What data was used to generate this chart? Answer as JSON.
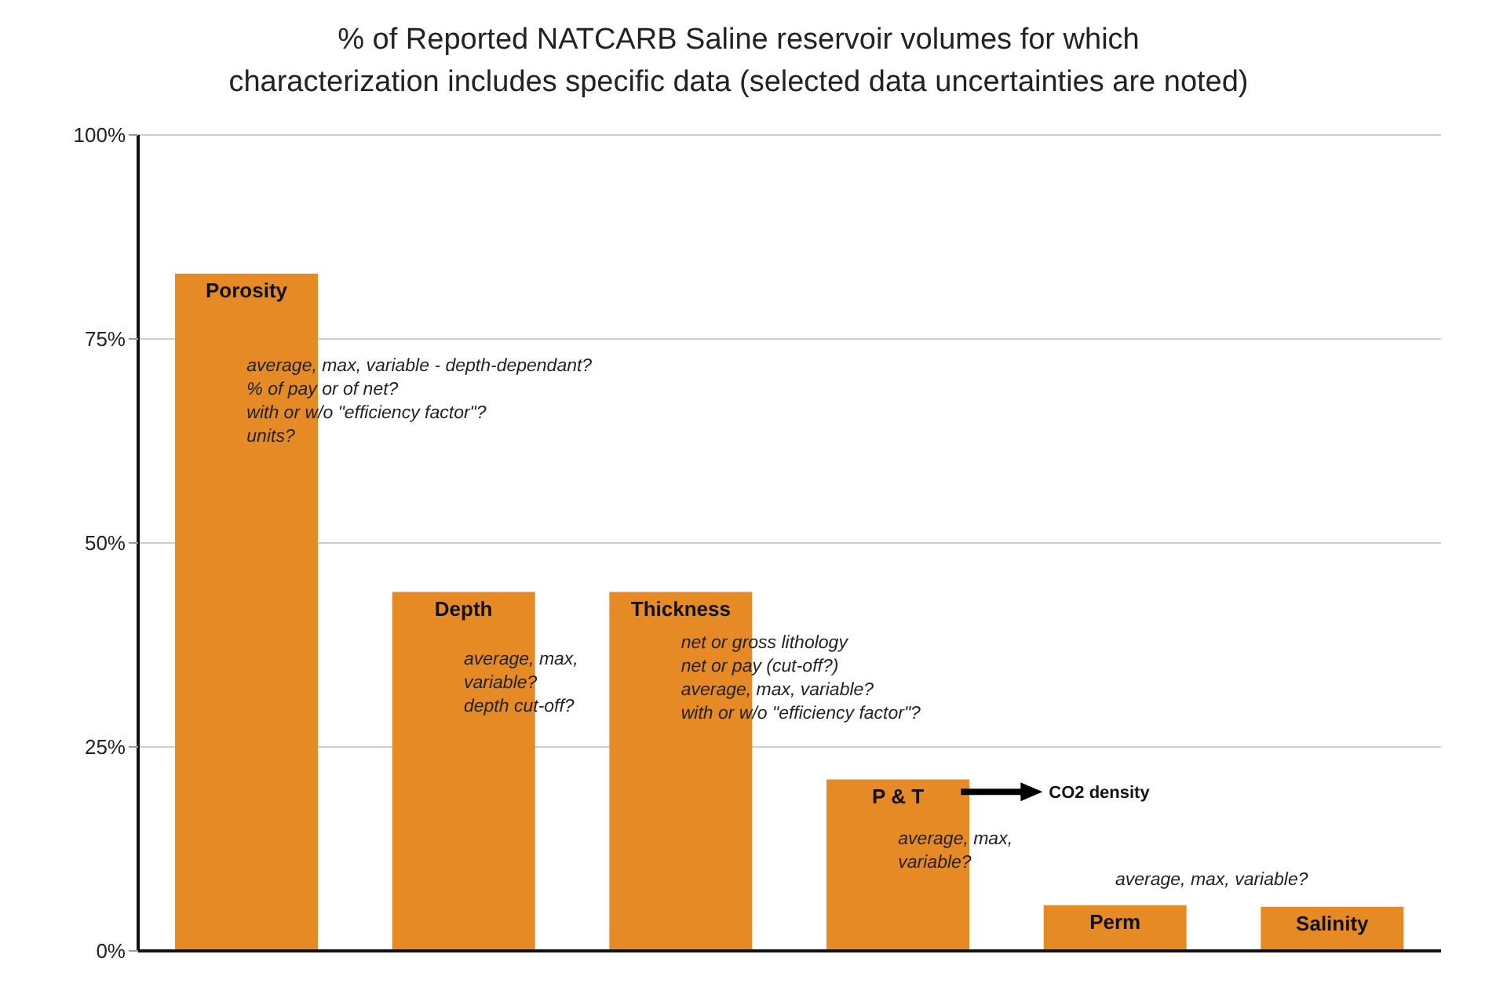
{
  "chart_data": {
    "type": "bar",
    "title": "% of Reported NATCARB Saline reservoir volumes for which\ncharacterization includes specific data (selected data uncertainties are noted)",
    "categories": [
      "Porosity",
      "Depth",
      "Thickness",
      "P & T",
      "Perm",
      "Salinity"
    ],
    "values": [
      83,
      44,
      44,
      21,
      5.6,
      5.4
    ],
    "color": "#e68a25",
    "ylim": [
      0,
      100
    ],
    "yticks": [
      {
        "value": 0,
        "label": "0%"
      },
      {
        "value": 25,
        "label": "25%"
      },
      {
        "value": 50,
        "label": "50%"
      },
      {
        "value": 75,
        "label": "75%"
      },
      {
        "value": 100,
        "label": "100%"
      }
    ],
    "grid": "y",
    "tick_labels": "y",
    "annotations": [
      "average, max, variable - depth-dependant?\n% of pay or of net?\nwith or w/o \"efficiency factor\"?\nunits?",
      "average, max,\nvariable?\ndepth cut-off?",
      "net or gross lithology\nnet or pay (cut-off?)\naverage, max, variable?\nwith or w/o \"efficiency factor\"?",
      "CO2 density",
      "average, max,\nvariable?",
      "average, max, variable?"
    ]
  }
}
